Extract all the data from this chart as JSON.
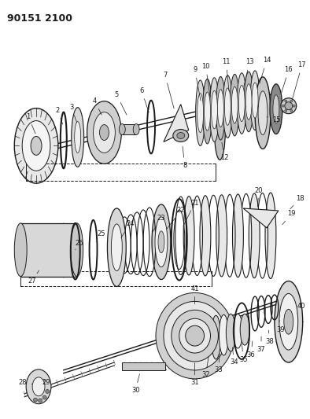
{
  "title": "90151 2100",
  "bg_color": "#ffffff",
  "line_color": "#1a1a1a",
  "fig_width": 3.94,
  "fig_height": 5.33,
  "dpi": 100
}
